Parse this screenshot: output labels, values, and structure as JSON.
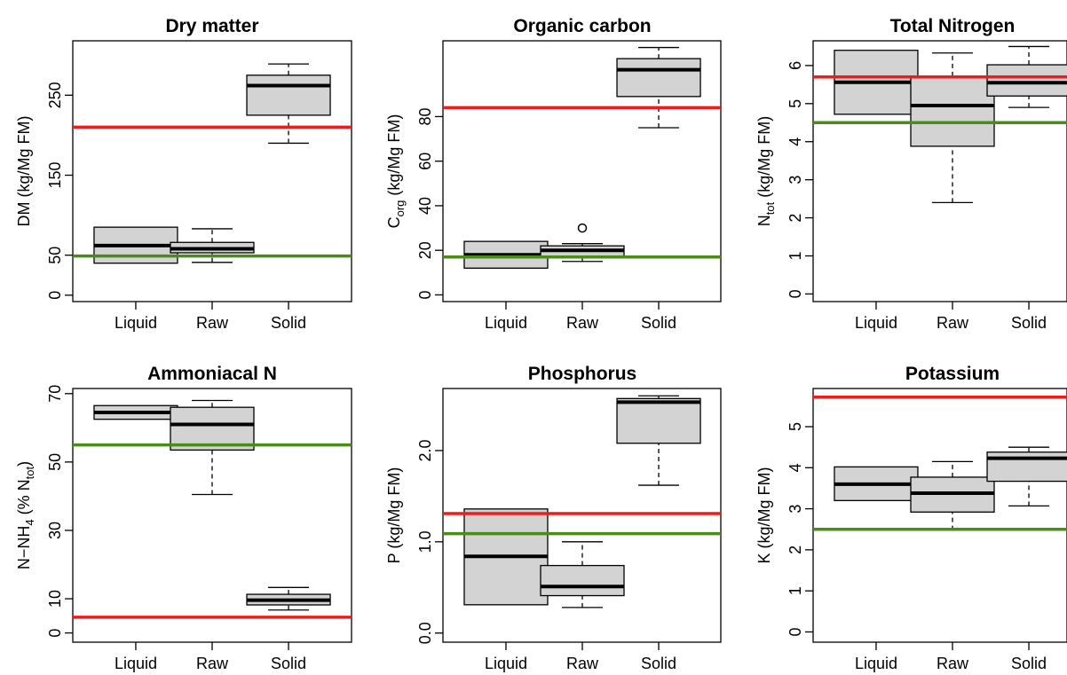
{
  "chart_data": [
    {
      "type": "boxplot",
      "title": "Dry matter",
      "ylabel": {
        "main": "DM (kg/Mg FM)",
        "base": "",
        "sub": "",
        "rest": ""
      },
      "categories": [
        "Liquid",
        "Raw",
        "Solid"
      ],
      "ylim": [
        -8,
        318
      ],
      "yticks": [
        0,
        50,
        150,
        250
      ],
      "yticklabels": [
        "0",
        "50",
        "150",
        "250"
      ],
      "boxes": [
        {
          "min": 40,
          "q1": 40,
          "median": 62,
          "q3": 85,
          "max": 85,
          "outliers": []
        },
        {
          "min": 41,
          "q1": 53,
          "median": 58,
          "q3": 66,
          "max": 83,
          "outliers": []
        },
        {
          "min": 190,
          "q1": 225,
          "median": 262,
          "q3": 275,
          "max": 289,
          "outliers": []
        }
      ],
      "hlines": [
        {
          "y": 210,
          "color": "#ee1c1c"
        },
        {
          "y": 49,
          "color": "#4a8c1c"
        }
      ]
    },
    {
      "type": "boxplot",
      "title": "Organic carbon",
      "ylabel": {
        "main": "",
        "base": "C",
        "sub": "org",
        "rest": " (kg/Mg FM)"
      },
      "categories": [
        "Liquid",
        "Raw",
        "Solid"
      ],
      "ylim": [
        -3,
        114
      ],
      "yticks": [
        0,
        20,
        40,
        60,
        80
      ],
      "yticklabels": [
        "0",
        "20",
        "40",
        "60",
        "80"
      ],
      "boxes": [
        {
          "min": 12,
          "q1": 12,
          "median": 18,
          "q3": 24,
          "max": 24,
          "outliers": []
        },
        {
          "min": 15,
          "q1": 17,
          "median": 20,
          "q3": 22,
          "max": 23,
          "outliers": [
            30
          ]
        },
        {
          "min": 75,
          "q1": 89,
          "median": 101,
          "q3": 106,
          "max": 111,
          "outliers": []
        }
      ],
      "hlines": [
        {
          "y": 84,
          "color": "#ee1c1c"
        },
        {
          "y": 17,
          "color": "#4a8c1c"
        }
      ]
    },
    {
      "type": "boxplot",
      "title": "Total Nitrogen",
      "ylabel": {
        "main": "",
        "base": "N",
        "sub": "tot",
        "rest": " (kg/Mg FM)"
      },
      "categories": [
        "Liquid",
        "Raw",
        "Solid"
      ],
      "ylim": [
        -0.2,
        6.65
      ],
      "yticks": [
        0,
        1,
        2,
        3,
        4,
        5,
        6
      ],
      "yticklabels": [
        "0",
        "1",
        "2",
        "3",
        "4",
        "5",
        "6"
      ],
      "boxes": [
        {
          "min": 4.72,
          "q1": 4.72,
          "median": 5.56,
          "q3": 6.4,
          "max": 6.4,
          "outliers": []
        },
        {
          "min": 2.4,
          "q1": 3.88,
          "median": 4.95,
          "q3": 5.72,
          "max": 6.33,
          "outliers": []
        },
        {
          "min": 4.9,
          "q1": 5.2,
          "median": 5.55,
          "q3": 6.02,
          "max": 6.5,
          "outliers": []
        }
      ],
      "hlines": [
        {
          "y": 5.7,
          "color": "#ee1c1c"
        },
        {
          "y": 4.5,
          "color": "#4a8c1c"
        }
      ]
    },
    {
      "type": "boxplot",
      "title": "Ammoniacal N",
      "ylabel": {
        "main": "",
        "base": "N−NH",
        "sub": "4",
        "rest": " (% N",
        "sub2": "tot",
        "rest2": ")"
      },
      "categories": [
        "Liquid",
        "Raw",
        "Solid"
      ],
      "ylim": [
        -2.7,
        71.5
      ],
      "yticks": [
        0,
        10,
        30,
        50,
        70
      ],
      "yticklabels": [
        "0",
        "10",
        "30",
        "50",
        "70"
      ],
      "boxes": [
        {
          "min": 62.5,
          "q1": 62.5,
          "median": 64.5,
          "q3": 66.5,
          "max": 66.5,
          "outliers": []
        },
        {
          "min": 40.5,
          "q1": 53.5,
          "median": 61,
          "q3": 66,
          "max": 68,
          "outliers": []
        },
        {
          "min": 6.7,
          "q1": 8.2,
          "median": 9.6,
          "q3": 11.3,
          "max": 13.3,
          "outliers": []
        }
      ],
      "hlines": [
        {
          "y": 55,
          "color": "#4a8c1c"
        },
        {
          "y": 4.6,
          "color": "#ee1c1c"
        }
      ]
    },
    {
      "type": "boxplot",
      "title": "Phosphorus",
      "ylabel": {
        "main": "P (kg/Mg FM)",
        "base": "",
        "sub": "",
        "rest": ""
      },
      "categories": [
        "Liquid",
        "Raw",
        "Solid"
      ],
      "ylim": [
        -0.1,
        2.68
      ],
      "yticks": [
        0,
        1,
        2
      ],
      "yticklabels": [
        "0.0",
        "1.0",
        "2.0"
      ],
      "boxes": [
        {
          "min": 0.31,
          "q1": 0.31,
          "median": 0.84,
          "q3": 1.36,
          "max": 1.36,
          "outliers": []
        },
        {
          "min": 0.28,
          "q1": 0.41,
          "median": 0.51,
          "q3": 0.74,
          "max": 1.0,
          "outliers": []
        },
        {
          "min": 1.62,
          "q1": 2.08,
          "median": 2.53,
          "q3": 2.57,
          "max": 2.6,
          "outliers": []
        }
      ],
      "hlines": [
        {
          "y": 1.31,
          "color": "#ee1c1c"
        },
        {
          "y": 1.09,
          "color": "#4a8c1c"
        }
      ]
    },
    {
      "type": "boxplot",
      "title": "Potassium",
      "ylabel": {
        "main": "K (kg/Mg FM)",
        "base": "",
        "sub": "",
        "rest": ""
      },
      "categories": [
        "Liquid",
        "Raw",
        "Solid"
      ],
      "ylim": [
        -0.25,
        5.93
      ],
      "yticks": [
        0,
        1,
        2,
        3,
        4,
        5
      ],
      "yticklabels": [
        "0",
        "1",
        "2",
        "3",
        "4",
        "5"
      ],
      "boxes": [
        {
          "min": 3.2,
          "q1": 3.2,
          "median": 3.6,
          "q3": 4.02,
          "max": 4.02,
          "outliers": []
        },
        {
          "min": 2.48,
          "q1": 2.92,
          "median": 3.38,
          "q3": 3.77,
          "max": 4.15,
          "outliers": []
        },
        {
          "min": 3.07,
          "q1": 3.67,
          "median": 4.23,
          "q3": 4.38,
          "max": 4.5,
          "outliers": []
        }
      ],
      "hlines": [
        {
          "y": 5.72,
          "color": "#ee1c1c"
        },
        {
          "y": 2.5,
          "color": "#4a8c1c"
        }
      ]
    }
  ]
}
